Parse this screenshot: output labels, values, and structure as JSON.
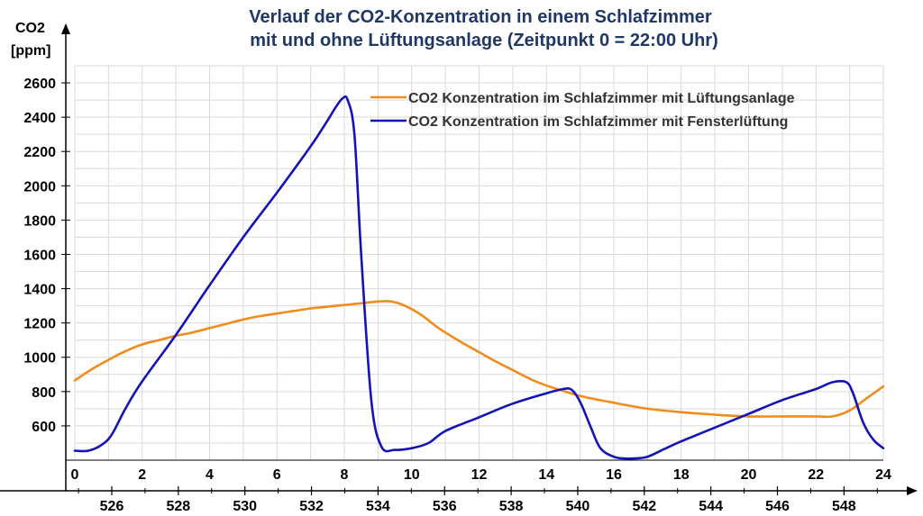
{
  "chart_data": {
    "type": "line",
    "title_lines": [
      "Verlauf der CO2-Konzentration in einem Schlafzimmer",
      "mit und ohne Lüftungsanlage (Zeitpunkt 0 = 22:00 Uhr)"
    ],
    "ylabel_lines": [
      "CO2",
      "[ppm]"
    ],
    "xlim": [
      0,
      24
    ],
    "ylim": [
      400,
      2700
    ],
    "x_ticks": [
      "0",
      "2",
      "4",
      "6",
      "8",
      "10",
      "12",
      "14",
      "16",
      "18",
      "20",
      "22",
      "24"
    ],
    "secondary_x_ticks": [
      "526",
      "528",
      "530",
      "532",
      "534",
      "536",
      "538",
      "540",
      "542",
      "544",
      "546",
      "548"
    ],
    "y_ticks": [
      "600",
      "800",
      "1000",
      "1200",
      "1400",
      "1600",
      "1800",
      "2000",
      "2200",
      "2400",
      "2600"
    ],
    "grid": true,
    "legend_position": "top-right",
    "colors": {
      "ventilation": "#f08c1e",
      "window": "#1414b4"
    },
    "series": [
      {
        "name": "CO2 Konzentration im Schlafzimmer mit Lüftungsanlage",
        "color": "#f08c1e",
        "x": [
          0,
          0.5,
          1,
          1.5,
          2,
          2.5,
          3,
          3.5,
          4,
          4.5,
          5,
          5.5,
          6,
          6.5,
          7,
          7.5,
          8,
          8.5,
          9,
          9.4,
          9.8,
          10.3,
          10.8,
          11.5,
          12,
          12.5,
          13,
          13.5,
          14,
          15,
          16,
          17,
          18,
          19,
          20,
          21,
          22,
          22.5,
          23,
          23.5,
          24
        ],
        "y": [
          865,
          930,
          985,
          1035,
          1075,
          1100,
          1125,
          1145,
          1170,
          1195,
          1220,
          1240,
          1255,
          1270,
          1285,
          1295,
          1305,
          1315,
          1325,
          1325,
          1300,
          1245,
          1170,
          1085,
          1030,
          975,
          925,
          875,
          835,
          775,
          735,
          700,
          680,
          665,
          655,
          655,
          655,
          655,
          690,
          760,
          830
        ]
      },
      {
        "name": "CO2 Konzentration im Schlafzimmer mit Fensterlüftung",
        "color": "#1414b4",
        "x": [
          0,
          0.4,
          0.8,
          1.1,
          1.5,
          2,
          3,
          4,
          5,
          6,
          7,
          7.5,
          7.75,
          7.95,
          8.1,
          8.3,
          8.5,
          8.8,
          9.1,
          9.5,
          10,
          10.5,
          11,
          12,
          13,
          14,
          14.5,
          14.75,
          15,
          15.3,
          15.6,
          16,
          16.3,
          16.6,
          17,
          17.5,
          18,
          19,
          20,
          21,
          22,
          22.5,
          22.9,
          23.1,
          23.4,
          23.7,
          24
        ],
        "y": [
          455,
          455,
          490,
          550,
          700,
          860,
          1130,
          1420,
          1700,
          1960,
          2230,
          2380,
          2460,
          2510,
          2500,
          2300,
          1600,
          750,
          480,
          460,
          470,
          500,
          570,
          650,
          730,
          790,
          815,
          810,
          740,
          600,
          470,
          420,
          410,
          410,
          420,
          465,
          510,
          590,
          670,
          750,
          815,
          855,
          855,
          790,
          620,
          520,
          470
        ]
      }
    ]
  }
}
